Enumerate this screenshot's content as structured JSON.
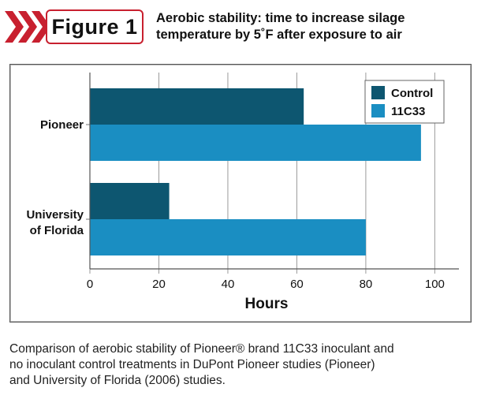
{
  "header": {
    "figure_label": "Figure 1",
    "title_line1": "Aerobic stability: time to increase silage",
    "title_line2": "temperature by 5˚F after exposure to air"
  },
  "caption": {
    "line1": "Comparison of aerobic stability of Pioneer® brand 11C33 inoculant and",
    "line2": "no inoculant control treatments in DuPont Pioneer studies (Pioneer)",
    "line3": "and University of Florida (2006) studies."
  },
  "colors": {
    "control": "#0d5670",
    "inoculant": "#1a8ec2",
    "accent": "#c8202f"
  },
  "chart_data": {
    "type": "bar",
    "orientation": "horizontal",
    "categories": [
      [
        "Pioneer"
      ],
      [
        "University",
        "of Florida"
      ]
    ],
    "series": [
      {
        "name": "Control",
        "values": [
          62,
          23
        ]
      },
      {
        "name": "11C33",
        "values": [
          96,
          80
        ]
      }
    ],
    "xlabel": "Hours",
    "xlim": [
      0,
      107
    ],
    "xticks": [
      0,
      20,
      40,
      60,
      80,
      100
    ],
    "grid": true,
    "legend": "top-right"
  }
}
